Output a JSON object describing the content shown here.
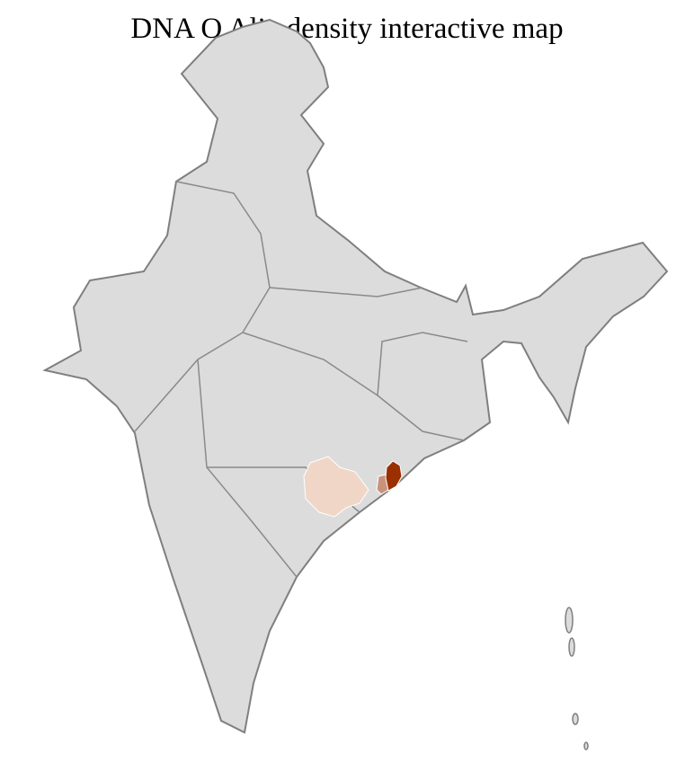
{
  "title": "DNA O Alia density interactive map",
  "map": {
    "region": "India districts",
    "base_color": "#dcdcdc",
    "border_color": "#7f7f7f",
    "district_border_color": "#ffffff",
    "density_colors": {
      "low": "#f0d6c6",
      "medium": "#c9937b",
      "high": "#9a2f00"
    }
  }
}
